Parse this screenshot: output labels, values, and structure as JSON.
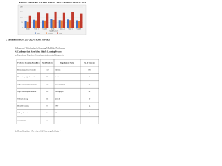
{
  "header": {
    "title": "ENROLMENT BY GRADE LEVEL AND GENDER SY 2020-2021"
  },
  "chart_data": {
    "type": "bar",
    "x_label": "Grade Level",
    "categories": [
      "Kinder",
      "Grade 1",
      "Grade 2",
      "Grade 3",
      "Grade 4",
      "Grade 5",
      "Grade 6"
    ],
    "series": [
      {
        "name": "Male",
        "color": "#4472c4",
        "values": [
          60,
          75,
          70,
          80,
          72,
          78,
          70
        ]
      },
      {
        "name": "Female",
        "color": "#ed7d31",
        "values": [
          55,
          70,
          68,
          74,
          70,
          72,
          66
        ]
      },
      {
        "name": "Total",
        "color": "#c0392b",
        "values": [
          115,
          145,
          138,
          154,
          142,
          150,
          136
        ]
      }
    ],
    "ylim": [
      0,
      200
    ],
    "yticks": [
      0,
      50,
      100,
      150,
      200
    ],
    "grid": true
  },
  "items": [
    "2. Enrolment of BOSY 2021-2022 vs EOSY 2020-2021",
    "3. Learners' Distribution in Learning Modalities Preference",
    "4. Challenges that Have Affect Child's Learning Process",
    "a. Educational Situation: Educational attainment of the parents"
  ],
  "table": {
    "header": [
      "Preferred Learning Modalities",
      "No. of Students",
      "Employment Status",
      "No. of Students"
    ],
    "rows": [
      [
        "Elementary printed modular",
        "112",
        "Full time",
        "120"
      ],
      [
        "Elementary digital modular",
        "20",
        "Part time",
        "45"
      ],
      [
        "High School printed modular",
        "98",
        "Self-employed",
        "60"
      ],
      [
        "High School digital modular",
        "15",
        "Unemployed",
        "88"
      ],
      [
        "Online learning",
        "12",
        "Retired",
        "10"
      ],
      [
        "Blended learning",
        "8",
        "OFW",
        "14"
      ],
      [
        "College Students",
        "5",
        "Others",
        "6"
      ],
      [
        "Out of school",
        "3",
        "",
        ""
      ]
    ]
  },
  "footer": "b. Home Situation: Who is the child's learning facilitator?"
}
